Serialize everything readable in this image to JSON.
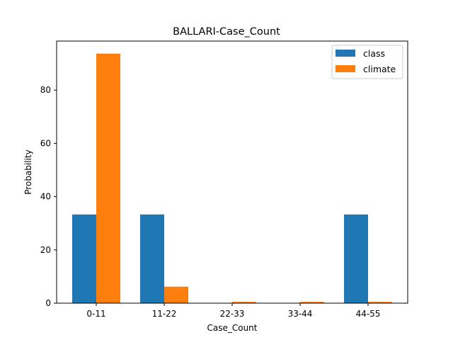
{
  "chart_data": {
    "type": "bar",
    "title": "BALLARI-Case_Count",
    "xlabel": "Case_Count",
    "ylabel": "Probability",
    "categories": [
      "0-11",
      "11-22",
      "22-33",
      "33-44",
      "44-55"
    ],
    "series": [
      {
        "name": "class",
        "values": [
          33.3,
          33.3,
          0,
          0,
          33.3
        ],
        "color": "#1f77b4"
      },
      {
        "name": "climate",
        "values": [
          93.7,
          6.2,
          0.5,
          0.5,
          0.5
        ],
        "color": "#ff7f0e"
      }
    ],
    "ylim": [
      0,
      98.4
    ],
    "yticks": [
      0,
      20,
      40,
      60,
      80
    ],
    "grid": false,
    "legend_position": "top-right"
  }
}
